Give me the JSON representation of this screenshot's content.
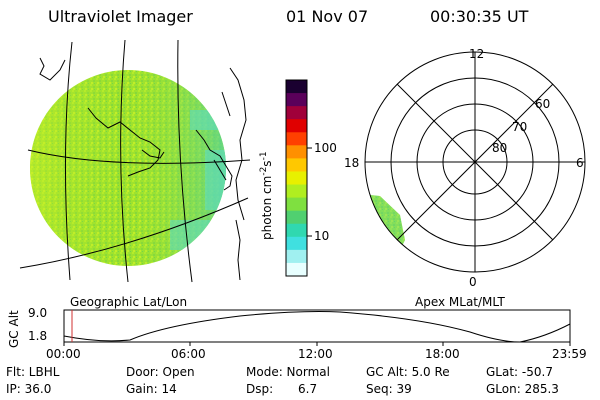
{
  "header": {
    "instrument": "Ultraviolet Imager",
    "date": "01 Nov 07",
    "time": "00:30:35 UT"
  },
  "geo_panel": {
    "label": "Geographic Lat/Lon"
  },
  "polar_panel": {
    "label": "Apex MLat/MLT",
    "mlt_labels": [
      "12",
      "18",
      "6",
      "0"
    ],
    "lat_labels": [
      "60",
      "70",
      "80"
    ]
  },
  "colorbar": {
    "unit_label": "photon cm",
    "unit_exp1": "-2",
    "unit_mid": "s",
    "unit_exp2": "-1",
    "ticks": [
      "100",
      "10"
    ],
    "colors": [
      "#1a0030",
      "#5a005a",
      "#a0003a",
      "#e00000",
      "#ff4000",
      "#ff9000",
      "#ffc800",
      "#e8f000",
      "#b0ee20",
      "#7fe040",
      "#50d070",
      "#30d8b0",
      "#40e0e0",
      "#a0f0f0",
      "#e8ffff"
    ]
  },
  "altitude_track": {
    "ylabel": "GC Alt",
    "ticks": [
      "9.0",
      "1.8"
    ],
    "time_ticks": [
      "00:00",
      "06:00",
      "12:00",
      "18:00",
      "23:59"
    ]
  },
  "footer": {
    "row1": {
      "flt": "Flt: LBHL",
      "door": "Door: Open",
      "mode": "Mode: Normal",
      "gcalt": "GC Alt: 5.0 Re",
      "glat": "GLat: -50.7"
    },
    "row2": {
      "ip": "IP: 36.0",
      "gain": "Gain: 14",
      "dsp_label": "Dsp:",
      "dsp_value": "6.7",
      "seq": "Seq: 39",
      "glon": "GLon: 285.3"
    }
  }
}
